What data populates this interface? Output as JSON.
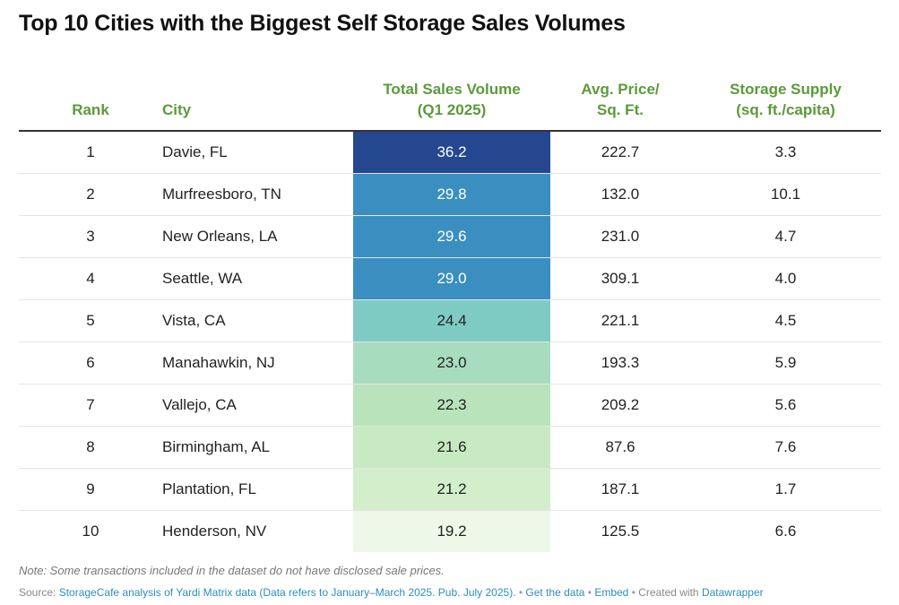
{
  "title": "Top 10 Cities with the Biggest Self Storage Sales Volumes",
  "chart_data": {
    "type": "table",
    "title": "Top 10 Cities with the Biggest Self Storage Sales Volumes",
    "columns": {
      "rank": "Rank",
      "city": "City",
      "volume_line1": "Total Sales Volume",
      "volume_line2": "(Q1 2025)",
      "price_line1": "Avg. Price/",
      "price_line2": "Sq. Ft.",
      "supply_line1": "Storage Supply",
      "supply_line2": "(sq. ft./capita)"
    },
    "rows": [
      {
        "rank": "1",
        "city": "Davie, FL",
        "volume": "36.2",
        "price": "222.7",
        "supply": "3.3"
      },
      {
        "rank": "2",
        "city": "Murfreesboro, TN",
        "volume": "29.8",
        "price": "132.0",
        "supply": "10.1"
      },
      {
        "rank": "3",
        "city": "New Orleans, LA",
        "volume": "29.6",
        "price": "231.0",
        "supply": "4.7"
      },
      {
        "rank": "4",
        "city": "Seattle, WA",
        "volume": "29.0",
        "price": "309.1",
        "supply": "4.0"
      },
      {
        "rank": "5",
        "city": "Vista, CA",
        "volume": "24.4",
        "price": "221.1",
        "supply": "4.5"
      },
      {
        "rank": "6",
        "city": "Manahawkin, NJ",
        "volume": "23.0",
        "price": "193.3",
        "supply": "5.9"
      },
      {
        "rank": "7",
        "city": "Vallejo, CA",
        "volume": "22.3",
        "price": "209.2",
        "supply": "5.6"
      },
      {
        "rank": "8",
        "city": "Birmingham, AL",
        "volume": "21.6",
        "price": "87.6",
        "supply": "7.6"
      },
      {
        "rank": "9",
        "city": "Plantation, FL",
        "volume": "21.2",
        "price": "187.1",
        "supply": "1.7"
      },
      {
        "rank": "10",
        "city": "Henderson, NV",
        "volume": "19.2",
        "price": "125.5",
        "supply": "6.6"
      }
    ],
    "heat_colors": [
      "#24478f",
      "#3a8fc0",
      "#3a8fc0",
      "#3a8fc0",
      "#7ecbc4",
      "#a7dcbf",
      "#b9e4bb",
      "#c8eac2",
      "#d2eecb",
      "#eef8e8"
    ],
    "heat_text_colors": [
      "#ffffff",
      "#ffffff",
      "#ffffff",
      "#ffffff",
      "#222222",
      "#222222",
      "#222222",
      "#222222",
      "#222222",
      "#222222"
    ]
  },
  "footer": {
    "note": "Note: Some transactions included in the dataset do not have disclosed sale prices.",
    "source_label": "Source: ",
    "source_link": "StorageCafe analysis of Yardi Matrix data (Data refers to January–March 2025. Pub. July 2025).",
    "sep": " • ",
    "get_data": "Get the data",
    "embed": "Embed",
    "created_with": "Created with ",
    "datawrapper": "Datawrapper"
  }
}
